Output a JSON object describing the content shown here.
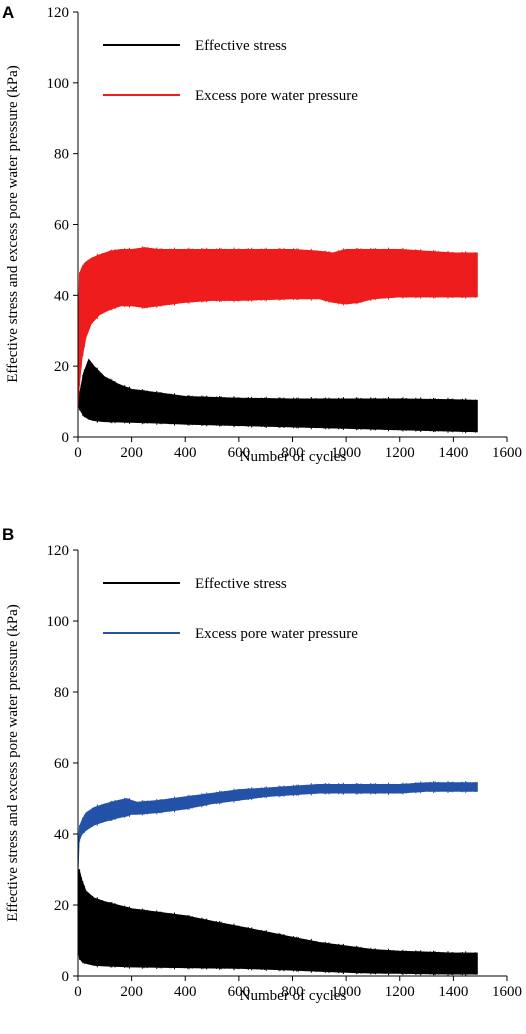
{
  "chart_data": [
    {
      "panel": "A",
      "type": "area",
      "xlabel": "Number of cycles",
      "ylabel": "Effective stress and excess pore water pressure (kPa)",
      "xlim": [
        0,
        1600
      ],
      "ylim": [
        0,
        120
      ],
      "xticks": [
        "0",
        "200",
        "400",
        "600",
        "800",
        "1000",
        "1200",
        "1400",
        "1600"
      ],
      "yticks": [
        "0",
        "20",
        "40",
        "60",
        "80",
        "100",
        "120"
      ],
      "grid": false,
      "legend_position": "top-left",
      "series": [
        {
          "name": "Effective stress",
          "color": "#000000",
          "x": [
            0,
            5,
            20,
            40,
            60,
            100,
            150,
            200,
            300,
            400,
            600,
            800,
            1000,
            1200,
            1400,
            1490
          ],
          "lower": [
            9,
            8,
            6,
            5,
            4.6,
            4.3,
            4.2,
            4.1,
            3.9,
            3.6,
            3.2,
            2.8,
            2.4,
            2.0,
            1.6,
            1.4
          ],
          "upper": [
            10,
            12,
            18,
            22,
            20,
            17,
            15,
            13.5,
            12.5,
            11.5,
            11,
            10.8,
            10.8,
            10.8,
            10.6,
            10.4
          ]
        },
        {
          "name": "Excess pore water pressure",
          "color": "#ee1c1c",
          "x": [
            0,
            5,
            15,
            30,
            50,
            80,
            120,
            160,
            200,
            250,
            300,
            400,
            500,
            600,
            800,
            900,
            950,
            1000,
            1050,
            1100,
            1200,
            1300,
            1400,
            1490
          ],
          "lower": [
            6,
            14,
            22,
            28,
            32,
            34.5,
            36,
            37,
            37,
            36.5,
            37,
            38,
            38.5,
            38.5,
            39,
            39,
            38,
            37.5,
            38,
            39,
            39.5,
            39.5,
            39.5,
            39.5
          ],
          "upper": [
            25,
            46,
            48,
            49.5,
            50.5,
            51.5,
            52.5,
            53,
            53,
            53.5,
            53,
            53,
            53,
            53,
            53,
            52.5,
            52,
            53,
            53,
            53,
            53,
            52.5,
            52,
            52
          ]
        }
      ]
    },
    {
      "panel": "B",
      "type": "area",
      "xlabel": "Number of cycles",
      "ylabel": "Effective stress and excess pore water pressure (kPa)",
      "xlim": [
        0,
        1600
      ],
      "ylim": [
        0,
        120
      ],
      "xticks": [
        "0",
        "200",
        "400",
        "600",
        "800",
        "1000",
        "1200",
        "1400",
        "1600"
      ],
      "yticks": [
        "0",
        "20",
        "40",
        "60",
        "80",
        "100",
        "120"
      ],
      "grid": false,
      "legend_position": "top-left",
      "series": [
        {
          "name": "Effective stress",
          "color": "#000000",
          "x": [
            0,
            5,
            15,
            30,
            60,
            100,
            200,
            300,
            400,
            500,
            600,
            700,
            800,
            900,
            1000,
            1100,
            1200,
            1300,
            1400,
            1490
          ],
          "lower": [
            8,
            5,
            4,
            3.5,
            3,
            2.8,
            2.5,
            2.4,
            2.3,
            2.2,
            2.1,
            1.9,
            1.6,
            1.3,
            1.0,
            0.8,
            0.7,
            0.6,
            0.5,
            0.5
          ],
          "upper": [
            30,
            30,
            27,
            24,
            22,
            21,
            19,
            18,
            17,
            15.5,
            14,
            12.5,
            11,
            9.5,
            8.5,
            7.5,
            7,
            6.8,
            6.5,
            6.5
          ]
        },
        {
          "name": "Excess pore water pressure",
          "color": "#2352a8",
          "x": [
            0,
            5,
            15,
            30,
            60,
            100,
            150,
            180,
            200,
            220,
            300,
            400,
            500,
            600,
            700,
            800,
            900,
            1000,
            1100,
            1200,
            1300,
            1400,
            1490
          ],
          "lower": [
            28,
            38,
            40,
            41,
            42.5,
            43.5,
            44.5,
            45,
            45.5,
            45.5,
            46,
            47,
            48.5,
            49.5,
            50.5,
            51,
            51.5,
            51.5,
            51.5,
            51.5,
            52,
            52,
            52
          ],
          "upper": [
            34,
            42,
            44,
            46,
            47.5,
            48.5,
            49.5,
            50,
            49.5,
            49,
            49.5,
            50.5,
            51.5,
            52.5,
            53,
            53.5,
            54,
            54,
            54,
            54,
            54.5,
            54.5,
            54.5
          ]
        }
      ]
    }
  ]
}
